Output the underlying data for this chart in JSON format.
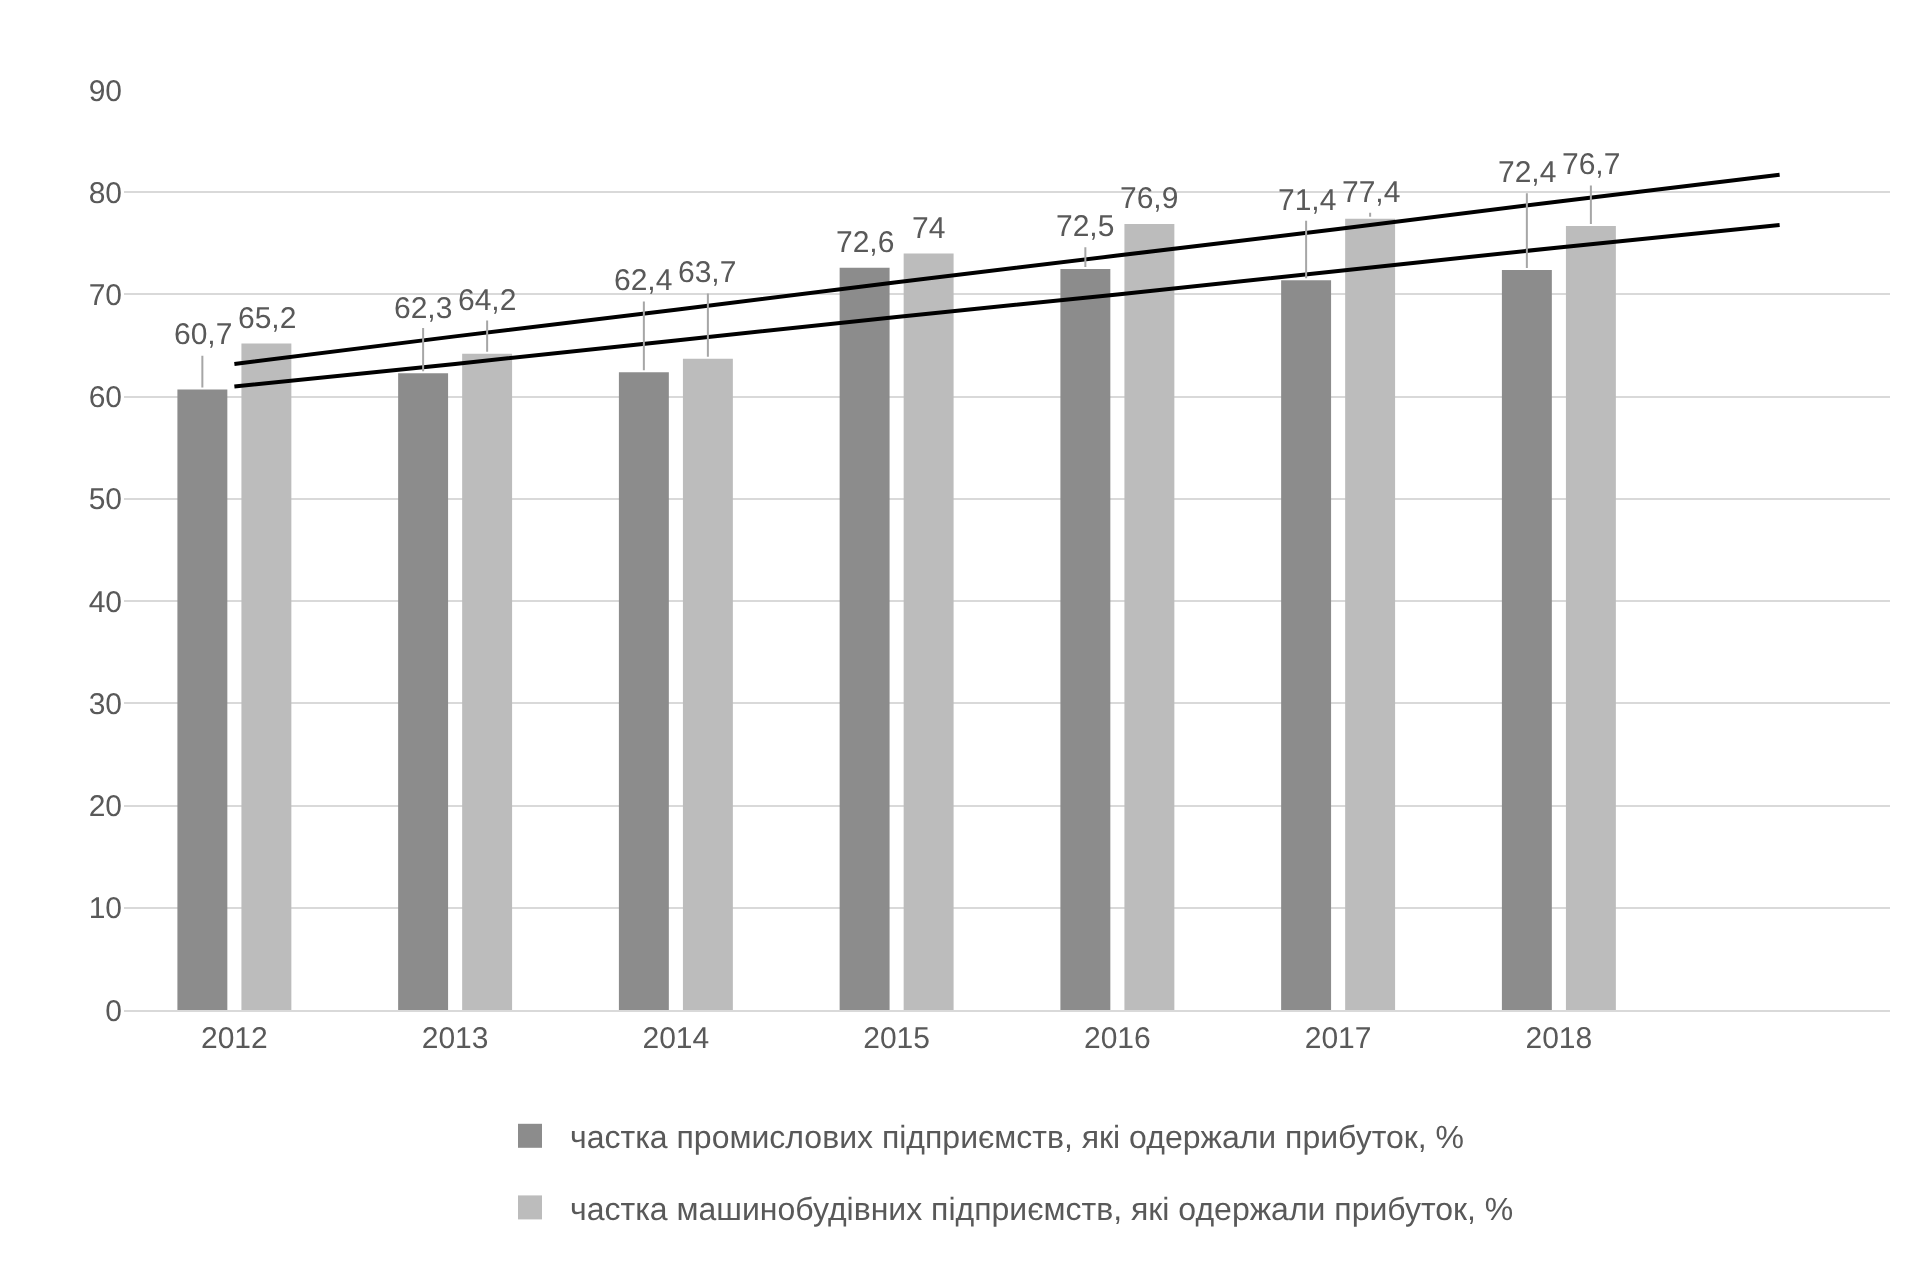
{
  "chart_data": {
    "type": "bar",
    "categories": [
      "2012",
      "2013",
      "2014",
      "2015",
      "2016",
      "2017",
      "2018",
      null
    ],
    "series": [
      {
        "name": "частка промислових підприємств, які одержали прибуток, %",
        "color": "#8c8c8c",
        "values": [
          60.7,
          62.3,
          62.4,
          72.6,
          72.5,
          71.4,
          72.4,
          null
        ],
        "value_labels": [
          "60,7",
          "62,3",
          "62,4",
          "72,6",
          "72,5",
          "71,4",
          "72,4",
          null
        ]
      },
      {
        "name": "частка машинобудівних підприємств, які одержали прибуток, %",
        "color": "#bcbcbc",
        "values": [
          65.2,
          64.2,
          63.7,
          74,
          76.9,
          77.4,
          76.7,
          null
        ],
        "value_labels": [
          "65,2",
          "64,2",
          "63,7",
          "74",
          "76,9",
          "77,4",
          "76,7",
          null
        ]
      },
      {
        "type": "line",
        "color": "#000000",
        "values": [
          61.0,
          63.2,
          65.5,
          67.8,
          70.0,
          72.3,
          74.6,
          76.8
        ]
      },
      {
        "type": "line",
        "color": "#000000",
        "values": [
          63.2,
          65.9,
          68.5,
          71.2,
          73.8,
          76.4,
          79.1,
          81.7
        ]
      }
    ],
    "ylim": [
      0,
      90
    ],
    "yticks": [
      0,
      10,
      20,
      30,
      40,
      50,
      60,
      70,
      80,
      90
    ],
    "grid": "y",
    "legend": "bottom"
  }
}
